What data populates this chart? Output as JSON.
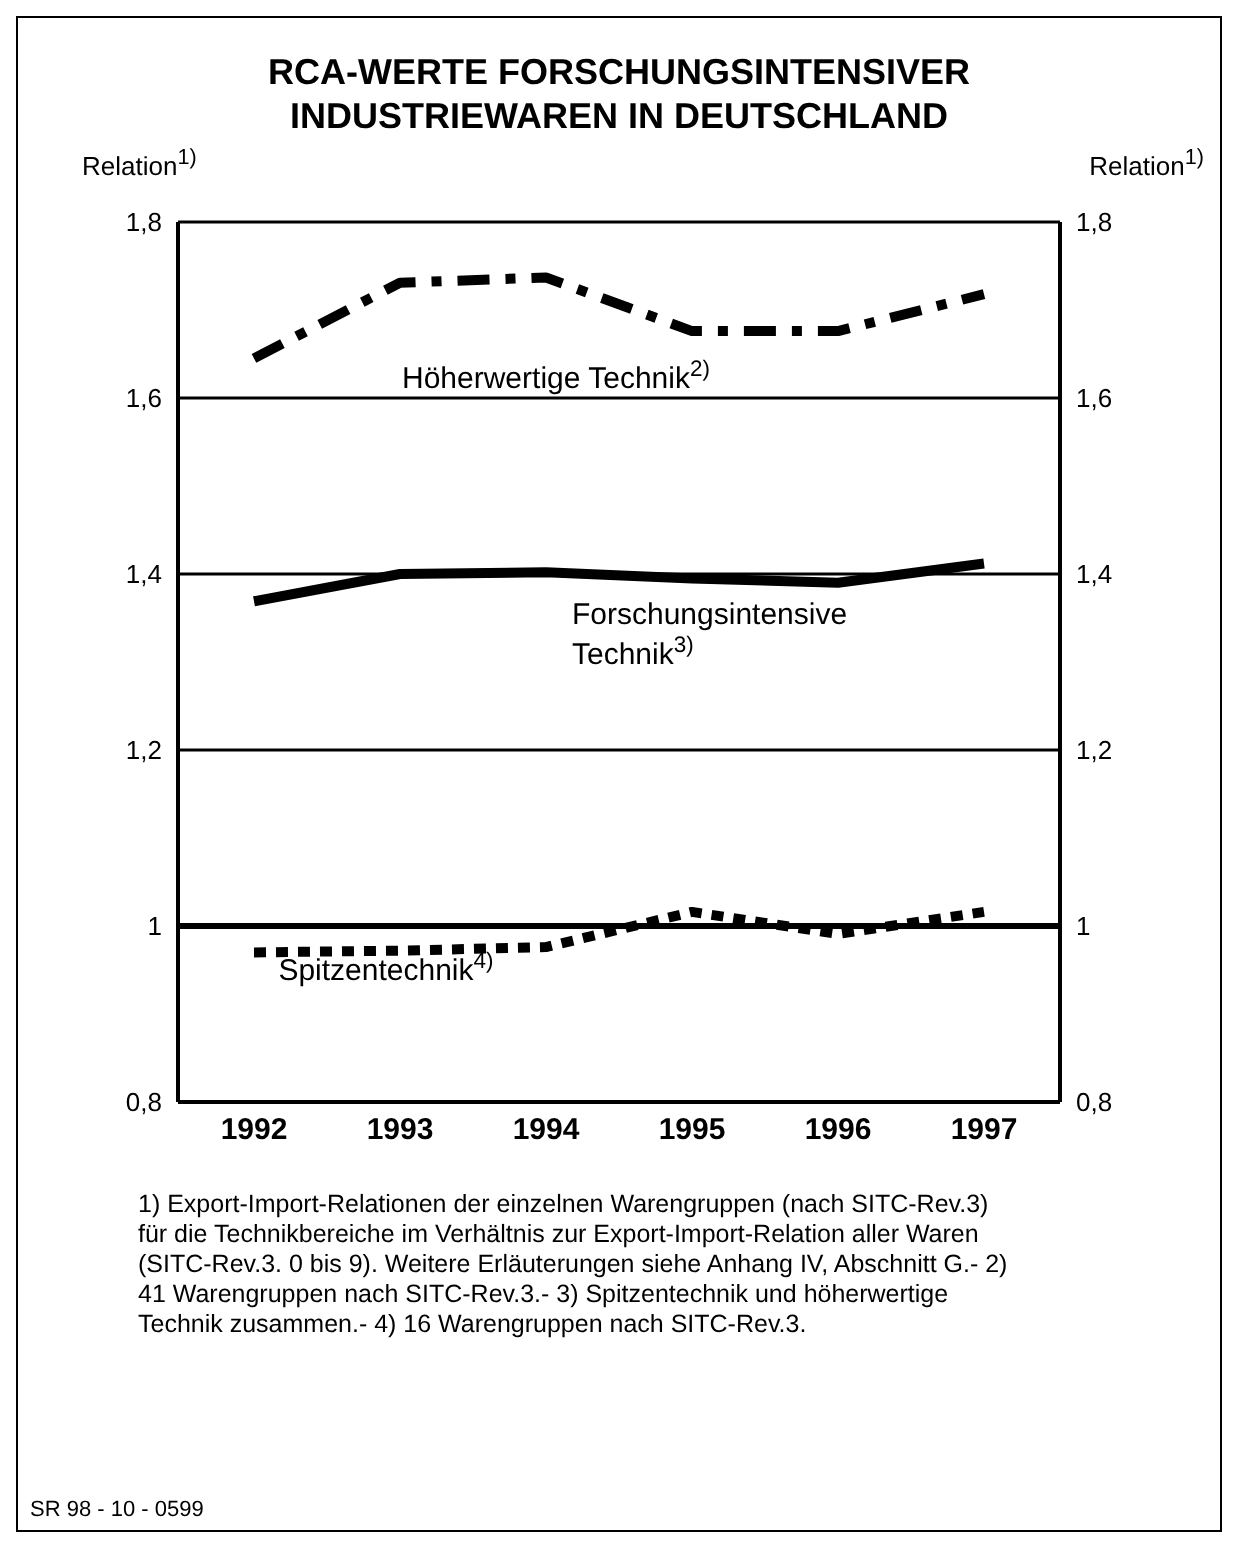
{
  "chart_data": {
    "type": "line",
    "title": "RCA-WERTE FORSCHUNGSINTENSIVER INDUSTRIEWAREN IN DEUTSCHLAND",
    "ylabel": "Relation$^{1)}$",
    "y2label": "Relation$^{1)}$",
    "categories": [
      "1992",
      "1993",
      "1994",
      "1995",
      "1996",
      "1997"
    ],
    "series": [
      {
        "name": "Höherwertige Technik$^{2)}$",
        "color": "#000000",
        "line_style": "dashed",
        "values": [
          1.645,
          1.731,
          1.737,
          1.676,
          1.676,
          1.718
        ]
      },
      {
        "name": "Forschungsintensive Technik$^{3)}$",
        "color": "#000000",
        "line_style": "solid",
        "values": [
          1.369,
          1.4,
          1.402,
          1.395,
          1.39,
          1.412
        ]
      },
      {
        "name": "Spitzentechnik$^{4)}$",
        "color": "#000000",
        "line_style": "dotted",
        "values": [
          0.97,
          0.972,
          0.976,
          1.016,
          0.991,
          1.016
        ]
      }
    ],
    "ylim": [
      0.8,
      1.8
    ],
    "yticks": [
      {
        "value": 0.8,
        "label": "0,8"
      },
      1,
      {
        "value": 1.2,
        "label": "1,2"
      },
      {
        "value": 1.4,
        "label": "1,4"
      },
      {
        "value": 1.6,
        "label": "1,6"
      },
      {
        "value": 1.8,
        "label": "1,8"
      }
    ],
    "y2lim": [
      0.8,
      1.8
    ],
    "y2ticks": [
      {
        "value": 0.8,
        "label": "0,8"
      },
      1,
      {
        "value": 1.2,
        "label": "1,2"
      },
      {
        "value": 1.4,
        "label": "1,4"
      },
      {
        "value": 1.6,
        "label": "1,6"
      },
      {
        "value": 1.8,
        "label": "1,8"
      }
    ],
    "ref_lines": [
      {
        "axis": "y",
        "value": 1,
        "color": "#000000"
      }
    ],
    "grid": "y",
    "marker": "none",
    "legend": false,
    "annotations": [
      "1) Export-Import-Relationen der einzelnen Warengruppen (nach SITC-Rev.3) für die Technikbereiche im Verhältnis zur Export-Import-Relation aller Waren (SITC-Rev.3. 0 bis 9). Weitere Erläuterungen siehe Anhang IV, Abschnitt G.- 2) 41 Warengruppen nach SITC-Rev.3.- 3) Spitzentechnik und höherwertige Technik zusammen.- 4) 16 Warengruppen nach SITC-Rev.3.",
      "SR 98 - 10 - 0599"
    ]
  }
}
